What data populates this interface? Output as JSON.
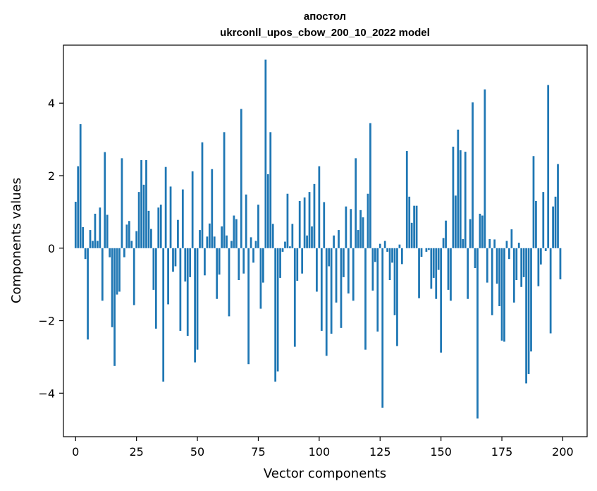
{
  "chart_data": {
    "type": "bar",
    "title": "апостол",
    "subtitle": "ukrconll_upos_cbow_200_10_2022 model",
    "xlabel": "Vector components",
    "ylabel": "Components values",
    "xlim": [
      -5,
      210
    ],
    "ylim": [
      -5.2,
      5.6
    ],
    "xticks": [
      0,
      25,
      50,
      75,
      100,
      125,
      150,
      175,
      200
    ],
    "yticks": [
      -4,
      -2,
      0,
      2,
      4
    ],
    "ytick_labels": [
      "−4",
      "−2",
      "0",
      "2",
      "4"
    ],
    "grid": false,
    "bar_color": "#1f77b4",
    "x": [
      0,
      1,
      2,
      3,
      4,
      5,
      6,
      7,
      8,
      9,
      10,
      11,
      12,
      13,
      14,
      15,
      16,
      17,
      18,
      19,
      20,
      21,
      22,
      23,
      24,
      25,
      26,
      27,
      28,
      29,
      30,
      31,
      32,
      33,
      34,
      35,
      36,
      37,
      38,
      39,
      40,
      41,
      42,
      43,
      44,
      45,
      46,
      47,
      48,
      49,
      50,
      51,
      52,
      53,
      54,
      55,
      56,
      57,
      58,
      59,
      60,
      61,
      62,
      63,
      64,
      65,
      66,
      67,
      68,
      69,
      70,
      71,
      72,
      73,
      74,
      75,
      76,
      77,
      78,
      79,
      80,
      81,
      82,
      83,
      84,
      85,
      86,
      87,
      88,
      89,
      90,
      91,
      92,
      93,
      94,
      95,
      96,
      97,
      98,
      99,
      100,
      101,
      102,
      103,
      104,
      105,
      106,
      107,
      108,
      109,
      110,
      111,
      112,
      113,
      114,
      115,
      116,
      117,
      118,
      119,
      120,
      121,
      122,
      123,
      124,
      125,
      126,
      127,
      128,
      129,
      130,
      131,
      132,
      133,
      134,
      135,
      136,
      137,
      138,
      139,
      140,
      141,
      142,
      143,
      144,
      145,
      146,
      147,
      148,
      149,
      150,
      151,
      152,
      153,
      154,
      155,
      156,
      157,
      158,
      159,
      160,
      161,
      162,
      163,
      164,
      165,
      166,
      167,
      168,
      169,
      170,
      171,
      172,
      173,
      174,
      175,
      176,
      177,
      178,
      179,
      180,
      181,
      182,
      183,
      184,
      185,
      186,
      187,
      188,
      189,
      190,
      191,
      192,
      193,
      194,
      195,
      196,
      197,
      198,
      199
    ],
    "values": [
      1.28,
      2.26,
      3.42,
      0.58,
      -0.3,
      -2.52,
      0.5,
      0.2,
      0.95,
      0.2,
      1.12,
      -1.45,
      2.65,
      0.92,
      -0.25,
      -2.18,
      -3.25,
      -1.28,
      -1.2,
      2.48,
      -0.25,
      0.65,
      0.75,
      0.2,
      -1.57,
      0.47,
      1.55,
      2.43,
      1.75,
      2.43,
      1.03,
      0.53,
      -1.15,
      -2.22,
      1.12,
      1.2,
      -3.68,
      2.24,
      -1.55,
      1.7,
      -0.65,
      -0.5,
      0.78,
      -2.28,
      1.62,
      -0.92,
      -2.42,
      -0.8,
      2.12,
      -3.15,
      -2.8,
      0.5,
      2.92,
      -0.75,
      0.32,
      0.68,
      2.18,
      0.32,
      -1.4,
      -0.73,
      0.6,
      3.2,
      0.35,
      -1.88,
      0.2,
      0.9,
      0.8,
      -0.88,
      3.84,
      -0.7,
      1.48,
      -3.2,
      0.3,
      -0.4,
      0.2,
      1.2,
      -1.67,
      -0.95,
      5.2,
      2.04,
      3.2,
      0.67,
      -3.68,
      -3.4,
      -0.82,
      -0.1,
      0.18,
      1.5,
      0.05,
      0.67,
      -2.72,
      -0.9,
      1.3,
      -0.7,
      1.4,
      0.35,
      1.55,
      0.6,
      1.77,
      -1.2,
      2.26,
      -2.28,
      1.27,
      -2.97,
      -0.5,
      -2.36,
      0.35,
      -1.5,
      0.5,
      -2.2,
      -0.8,
      1.15,
      -1.25,
      1.08,
      -1.45,
      2.48,
      0.5,
      1.05,
      0.85,
      -2.8,
      1.5,
      3.45,
      -1.17,
      -0.38,
      -2.3,
      0.12,
      -4.4,
      0.2,
      -0.1,
      -0.88,
      -0.4,
      -1.85,
      -2.7,
      0.1,
      -0.44,
      0,
      2.68,
      1.42,
      0.7,
      1.17,
      1.17,
      -1.38,
      -0.24,
      0,
      -0.1,
      -0.05,
      -1.12,
      -0.82,
      -1.4,
      -0.6,
      -2.88,
      0.28,
      0.76,
      -1.15,
      -1.45,
      2.8,
      1.45,
      3.27,
      2.7,
      0.25,
      2.66,
      -1.4,
      0.8,
      4.02,
      -0.55,
      -4.7,
      0.95,
      0.9,
      4.38,
      -0.95,
      0.25,
      -1.85,
      0.24,
      -0.98,
      -1.6,
      -2.55,
      -2.58,
      0.2,
      -0.3,
      0.52,
      -1.5,
      -0.88,
      0.15,
      -1.07,
      -0.8,
      -3.73,
      -3.47,
      -2.85,
      2.54,
      1.3,
      -1.05,
      -0.45,
      1.55,
      -0.08,
      4.5,
      -2.35,
      1.15,
      1.42,
      2.32,
      -0.86
    ]
  }
}
